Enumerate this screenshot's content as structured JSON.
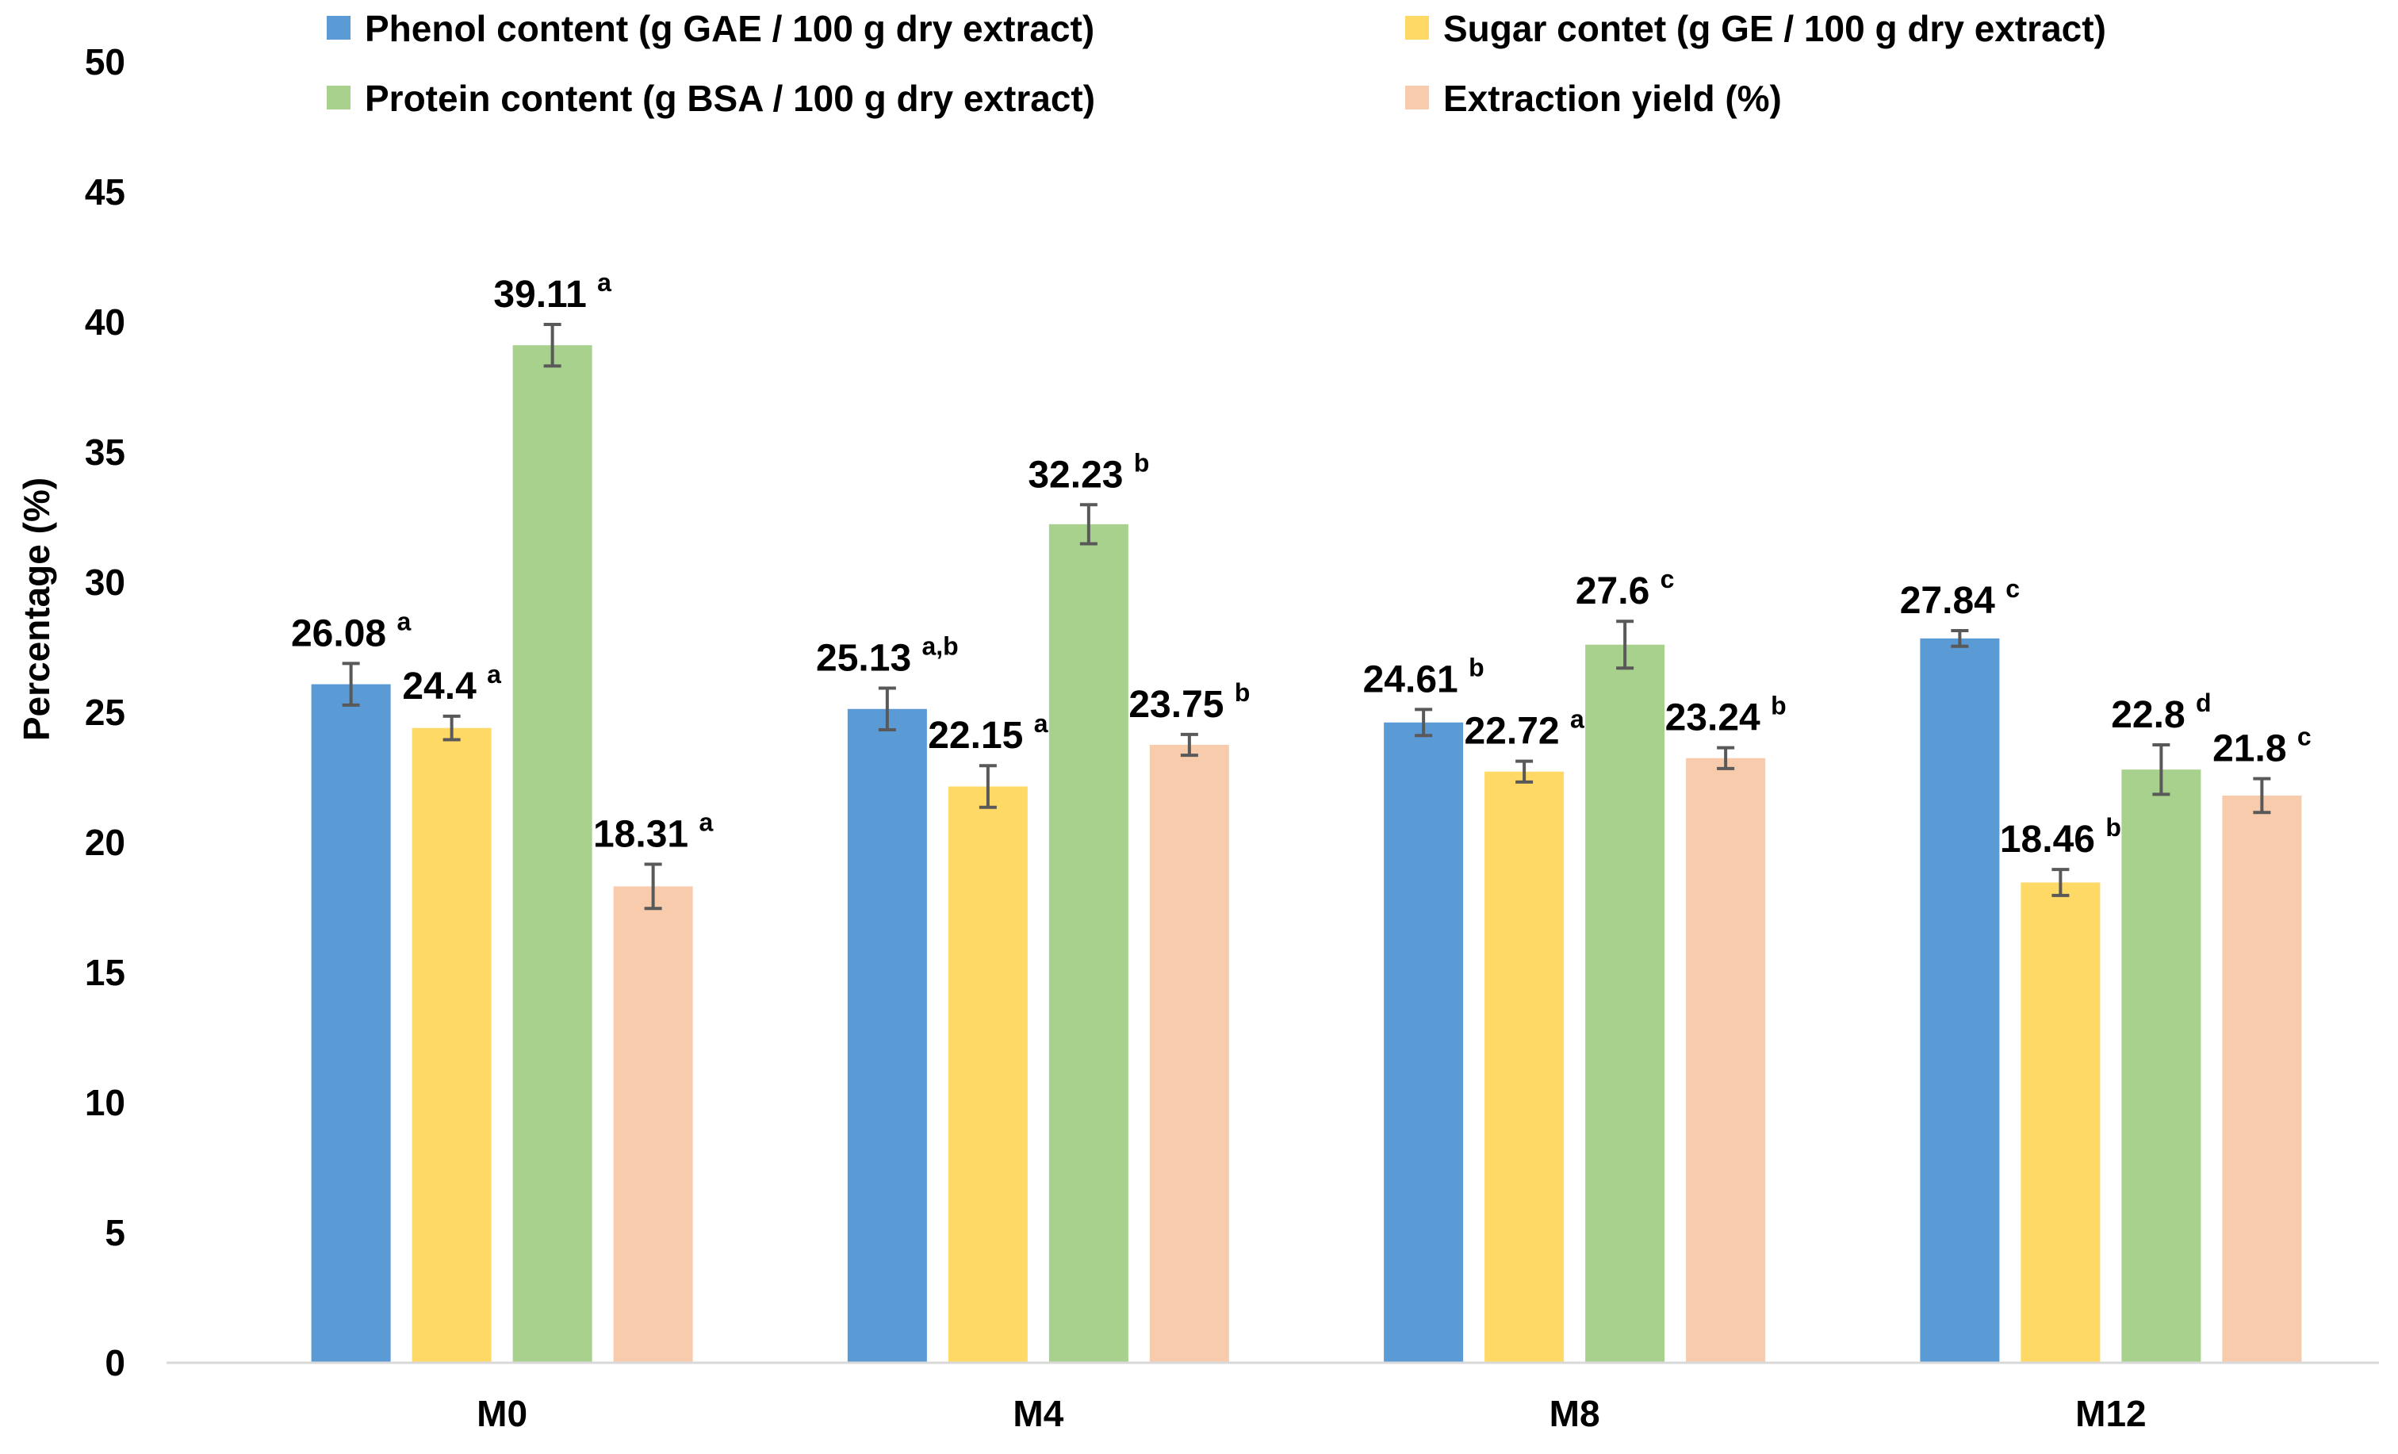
{
  "chart_data": {
    "type": "bar",
    "title": "",
    "xlabel": "",
    "ylabel": "Percentage (%)",
    "ylim": [
      0,
      50
    ],
    "yticks": [
      "0",
      "5",
      "10",
      "15",
      "20",
      "25",
      "30",
      "35",
      "40",
      "45",
      "50"
    ],
    "ytick_values": [
      0,
      5,
      10,
      15,
      20,
      25,
      30,
      35,
      40,
      45,
      50
    ],
    "categories": [
      "M0",
      "M4",
      "M8",
      "M12"
    ],
    "grid": false,
    "legend_position": "top",
    "error_bar_color": "#595959",
    "axis_color": "#d9d9d9",
    "series": [
      {
        "name": "Phenol content (g GAE / 100 g dry extract)",
        "color": "#5b9bd5",
        "values": [
          26.08,
          25.13,
          24.61,
          27.84
        ],
        "errors": [
          0.8,
          0.8,
          0.5,
          0.3
        ],
        "value_labels": [
          "26.08",
          "25.13",
          "24.61",
          "27.84"
        ],
        "letters": [
          "a",
          "a,b",
          "b",
          "c"
        ]
      },
      {
        "name": "Sugar contet (g GE / 100 g dry extract)",
        "color": "#ffd966",
        "values": [
          24.4,
          22.15,
          22.72,
          18.46
        ],
        "errors": [
          0.45,
          0.8,
          0.4,
          0.5
        ],
        "value_labels": [
          "24.4",
          "22.15",
          "22.72",
          "18.46"
        ],
        "letters": [
          "a",
          "a",
          "a",
          "b"
        ]
      },
      {
        "name": "Protein content (g BSA / 100 g dry extract)",
        "color": "#a9d18e",
        "values": [
          39.11,
          32.23,
          27.6,
          22.8
        ],
        "errors": [
          0.8,
          0.75,
          0.9,
          0.95
        ],
        "value_labels": [
          "39.11",
          "32.23",
          "27.6",
          "22.8"
        ],
        "letters": [
          "a",
          "b",
          "c",
          "d"
        ]
      },
      {
        "name": "Extraction yield (%)",
        "color": "#f8cbad",
        "values": [
          18.31,
          23.75,
          23.24,
          21.8
        ],
        "errors": [
          0.85,
          0.4,
          0.4,
          0.65
        ],
        "value_labels": [
          "18.31",
          "23.75",
          "23.24",
          "21.8"
        ],
        "letters": [
          "a",
          "b",
          "b",
          "c"
        ]
      }
    ]
  }
}
